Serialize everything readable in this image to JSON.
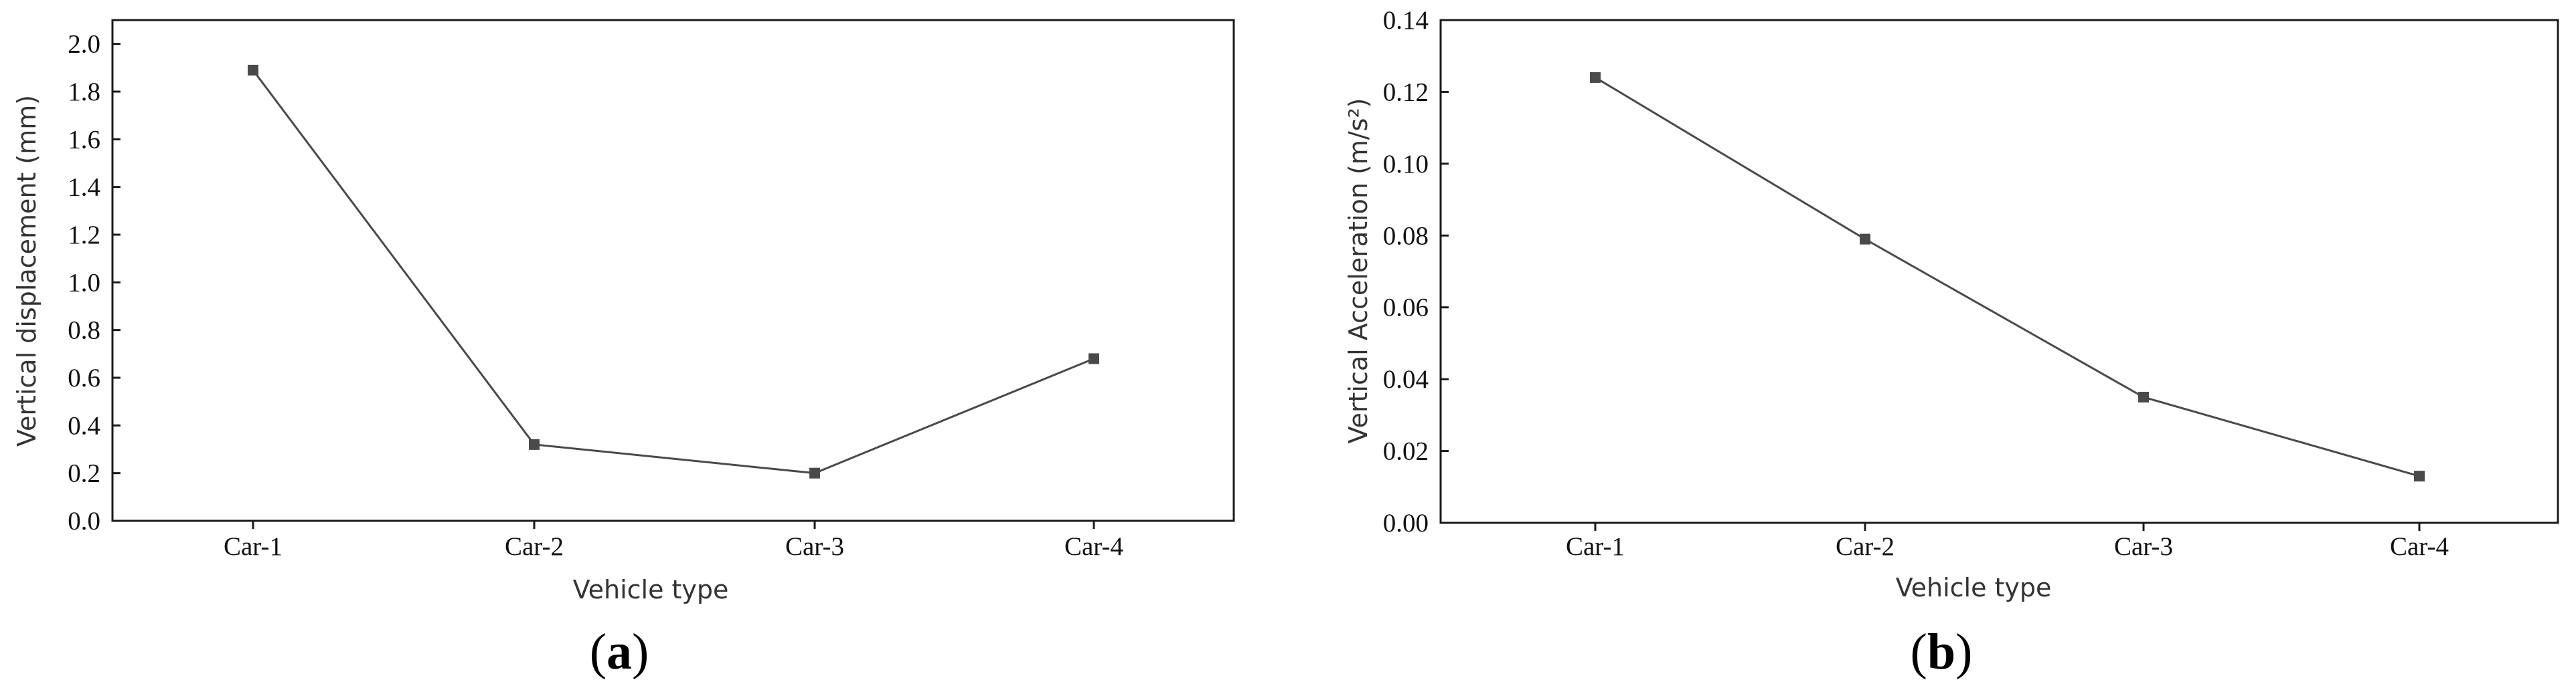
{
  "chart_data": [
    {
      "type": "line",
      "categories": [
        "Car-1",
        "Car-2",
        "Car-3",
        "Car-4"
      ],
      "series": [
        {
          "values": [
            1.89,
            0.32,
            0.2,
            0.68
          ]
        }
      ],
      "xlabel": "Vehicle type",
      "ylabel": "Vertical displacement (mm)",
      "ylim": [
        0,
        2.1
      ],
      "yticks": [
        "0.0",
        "0.2",
        "0.4",
        "0.6",
        "0.8",
        "1.0",
        "1.2",
        "1.4",
        "1.6",
        "1.8",
        "2.0"
      ],
      "ytick_values": [
        0,
        0.2,
        0.4,
        0.6,
        0.8,
        1.0,
        1.2,
        1.4,
        1.6,
        1.8,
        2.0
      ],
      "grid": false,
      "legend": "none",
      "caption_letter": "a",
      "colors": {
        "line": "#4a4a4a",
        "marker": "#4a4a4a"
      }
    },
    {
      "type": "line",
      "categories": [
        "Car-1",
        "Car-2",
        "Car-3",
        "Car-4"
      ],
      "series": [
        {
          "values": [
            0.124,
            0.079,
            0.035,
            0.013
          ]
        }
      ],
      "xlabel": "Vehicle type",
      "ylabel": "Vertical Acceleration (m/s²)",
      "ylim": [
        0,
        0.14
      ],
      "yticks": [
        "0.00",
        "0.02",
        "0.04",
        "0.06",
        "0.08",
        "0.10",
        "0.12",
        "0.14"
      ],
      "ytick_values": [
        0,
        0.02,
        0.04,
        0.06,
        0.08,
        0.1,
        0.12,
        0.14
      ],
      "grid": false,
      "legend": "none",
      "caption_letter": "b",
      "colors": {
        "line": "#4a4a4a",
        "marker": "#4a4a4a"
      }
    }
  ]
}
